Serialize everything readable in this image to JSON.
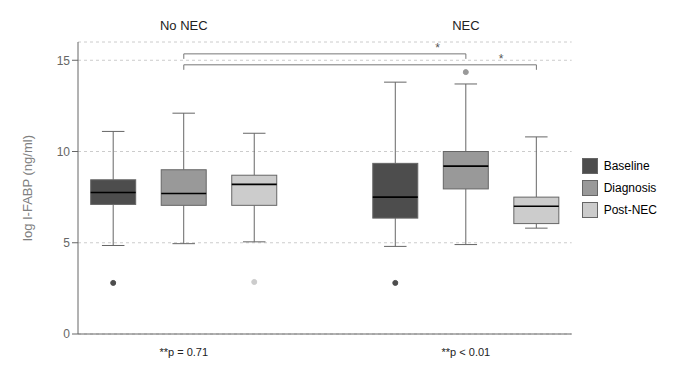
{
  "chart_data": {
    "type": "box",
    "ylabel": "log I-FABP (ng/ml)",
    "ylim": [
      0,
      16
    ],
    "yticks": [
      0,
      5,
      10,
      15
    ],
    "grid": true,
    "legend": "right",
    "categories": [
      "No NEC",
      "NEC"
    ],
    "series": [
      {
        "name": "Baseline",
        "color": "#4d4d4d",
        "values": [
          {
            "q1": 7.1,
            "median": 7.75,
            "q3": 8.45,
            "whislo": 4.85,
            "whishi": 11.1,
            "fliers": [
              2.8
            ]
          },
          {
            "q1": 6.35,
            "median": 7.5,
            "q3": 9.35,
            "whislo": 4.8,
            "whishi": 13.8,
            "fliers": [
              2.8
            ]
          }
        ]
      },
      {
        "name": "Diagnosis",
        "color": "#999999",
        "values": [
          {
            "q1": 7.05,
            "median": 7.7,
            "q3": 9.0,
            "whislo": 4.95,
            "whishi": 12.1,
            "fliers": []
          },
          {
            "q1": 7.95,
            "median": 9.2,
            "q3": 10.0,
            "whislo": 4.9,
            "whishi": 13.7,
            "fliers": [
              14.35
            ]
          }
        ]
      },
      {
        "name": "Post-NEC",
        "color": "#cccccc",
        "values": [
          {
            "q1": 7.05,
            "median": 8.2,
            "q3": 8.7,
            "whislo": 5.05,
            "whishi": 11.0,
            "fliers": [
              2.85
            ]
          },
          {
            "q1": 6.05,
            "median": 7.0,
            "q3": 7.5,
            "whislo": 5.8,
            "whishi": 10.8,
            "fliers": []
          }
        ]
      }
    ],
    "annotations": [
      {
        "category": "No NEC",
        "text": "**p = 0.71"
      },
      {
        "category": "NEC",
        "text": "**p < 0.01"
      }
    ],
    "brackets": [
      {
        "y": 15.35,
        "from": {
          "category": "No NEC",
          "series": "Diagnosis"
        },
        "to": {
          "category": "NEC",
          "series": "Diagnosis"
        },
        "text": "*"
      },
      {
        "y": 14.75,
        "from": {
          "category": "No NEC",
          "series": "Diagnosis"
        },
        "to": {
          "category": "NEC",
          "series": "Post-NEC"
        },
        "text": "*"
      }
    ]
  }
}
